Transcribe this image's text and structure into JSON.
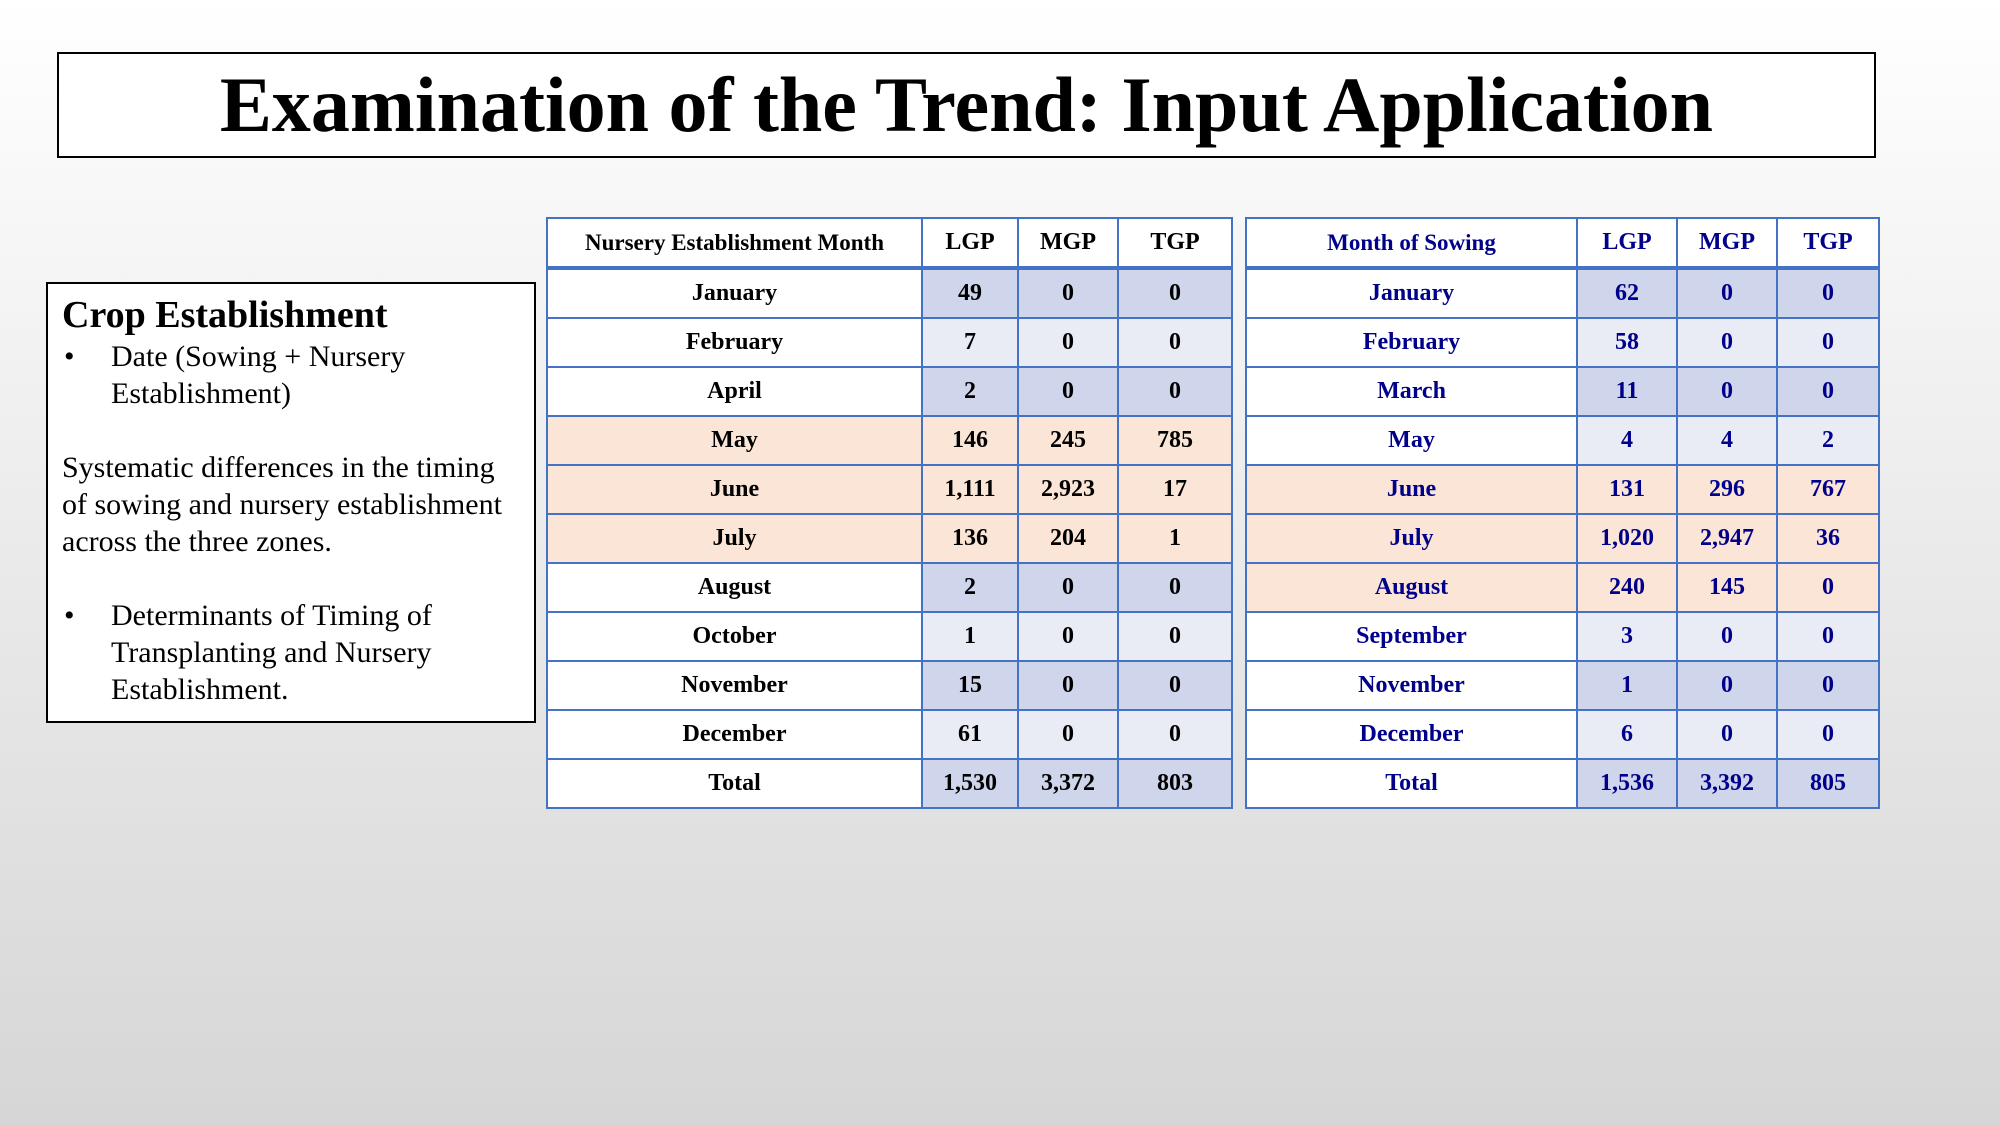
{
  "title": "Examination of the Trend: Input Application",
  "textbox": {
    "heading": "Crop Establishment",
    "bullet1_mark": "•",
    "bullet1": "Date (Sowing + Nursery Establishment)",
    "paragraph": "Systematic differences in the timing of sowing and nursery establishment across the three zones.",
    "bullet2_mark": "•",
    "bullet2": "Determinants of Timing of Transplanting and Nursery Establishment."
  },
  "nursery_table": {
    "headers": [
      "Nursery Establishment Month",
      "LGP",
      "MGP",
      "TGP"
    ],
    "rows": [
      {
        "month": "January",
        "lgp": "49",
        "mgp": "0",
        "tgp": "0",
        "shade": "blue"
      },
      {
        "month": "February",
        "lgp": "7",
        "mgp": "0",
        "tgp": "0",
        "shade": "grey"
      },
      {
        "month": "April",
        "lgp": "2",
        "mgp": "0",
        "tgp": "0",
        "shade": "blue"
      },
      {
        "month": "May",
        "lgp": "146",
        "mgp": "245",
        "tgp": "785",
        "shade": "peach"
      },
      {
        "month": "June",
        "lgp": "1,111",
        "mgp": "2,923",
        "tgp": "17",
        "shade": "peach"
      },
      {
        "month": "July",
        "lgp": "136",
        "mgp": "204",
        "tgp": "1",
        "shade": "peach"
      },
      {
        "month": "August",
        "lgp": "2",
        "mgp": "0",
        "tgp": "0",
        "shade": "blue"
      },
      {
        "month": "October",
        "lgp": "1",
        "mgp": "0",
        "tgp": "0",
        "shade": "grey"
      },
      {
        "month": "November",
        "lgp": "15",
        "mgp": "0",
        "tgp": "0",
        "shade": "blue"
      },
      {
        "month": "December",
        "lgp": "61",
        "mgp": "0",
        "tgp": "0",
        "shade": "grey"
      },
      {
        "month": "Total",
        "lgp": "1,530",
        "mgp": "3,372",
        "tgp": "803",
        "shade": "total"
      }
    ]
  },
  "sowing_table": {
    "headers": [
      "Month of Sowing",
      "LGP",
      "MGP",
      "TGP"
    ],
    "rows": [
      {
        "month": "January",
        "lgp": "62",
        "mgp": "0",
        "tgp": "0",
        "shade": "blue"
      },
      {
        "month": "February",
        "lgp": "58",
        "mgp": "0",
        "tgp": "0",
        "shade": "grey"
      },
      {
        "month": "March",
        "lgp": "11",
        "mgp": "0",
        "tgp": "0",
        "shade": "blue"
      },
      {
        "month": "May",
        "lgp": "4",
        "mgp": "4",
        "tgp": "2",
        "shade": "grey"
      },
      {
        "month": "June",
        "lgp": "131",
        "mgp": "296",
        "tgp": "767",
        "shade": "peach"
      },
      {
        "month": "July",
        "lgp": "1,020",
        "mgp": "2,947",
        "tgp": "36",
        "shade": "peach"
      },
      {
        "month": "August",
        "lgp": "240",
        "mgp": "145",
        "tgp": "0",
        "shade": "peach"
      },
      {
        "month": "September",
        "lgp": "3",
        "mgp": "0",
        "tgp": "0",
        "shade": "grey"
      },
      {
        "month": "November",
        "lgp": "1",
        "mgp": "0",
        "tgp": "0",
        "shade": "blue"
      },
      {
        "month": "December",
        "lgp": "6",
        "mgp": "0",
        "tgp": "0",
        "shade": "grey"
      },
      {
        "month": "Total",
        "lgp": "1,536",
        "mgp": "3,392",
        "tgp": "805",
        "shade": "total"
      }
    ]
  },
  "colors": {
    "table_border": "#4472c4",
    "peach_row": "#fbe5d6",
    "blue_cell": "#cfd5ea",
    "grey_cell": "#e9ebf5",
    "sowing_text": "#00008b"
  }
}
